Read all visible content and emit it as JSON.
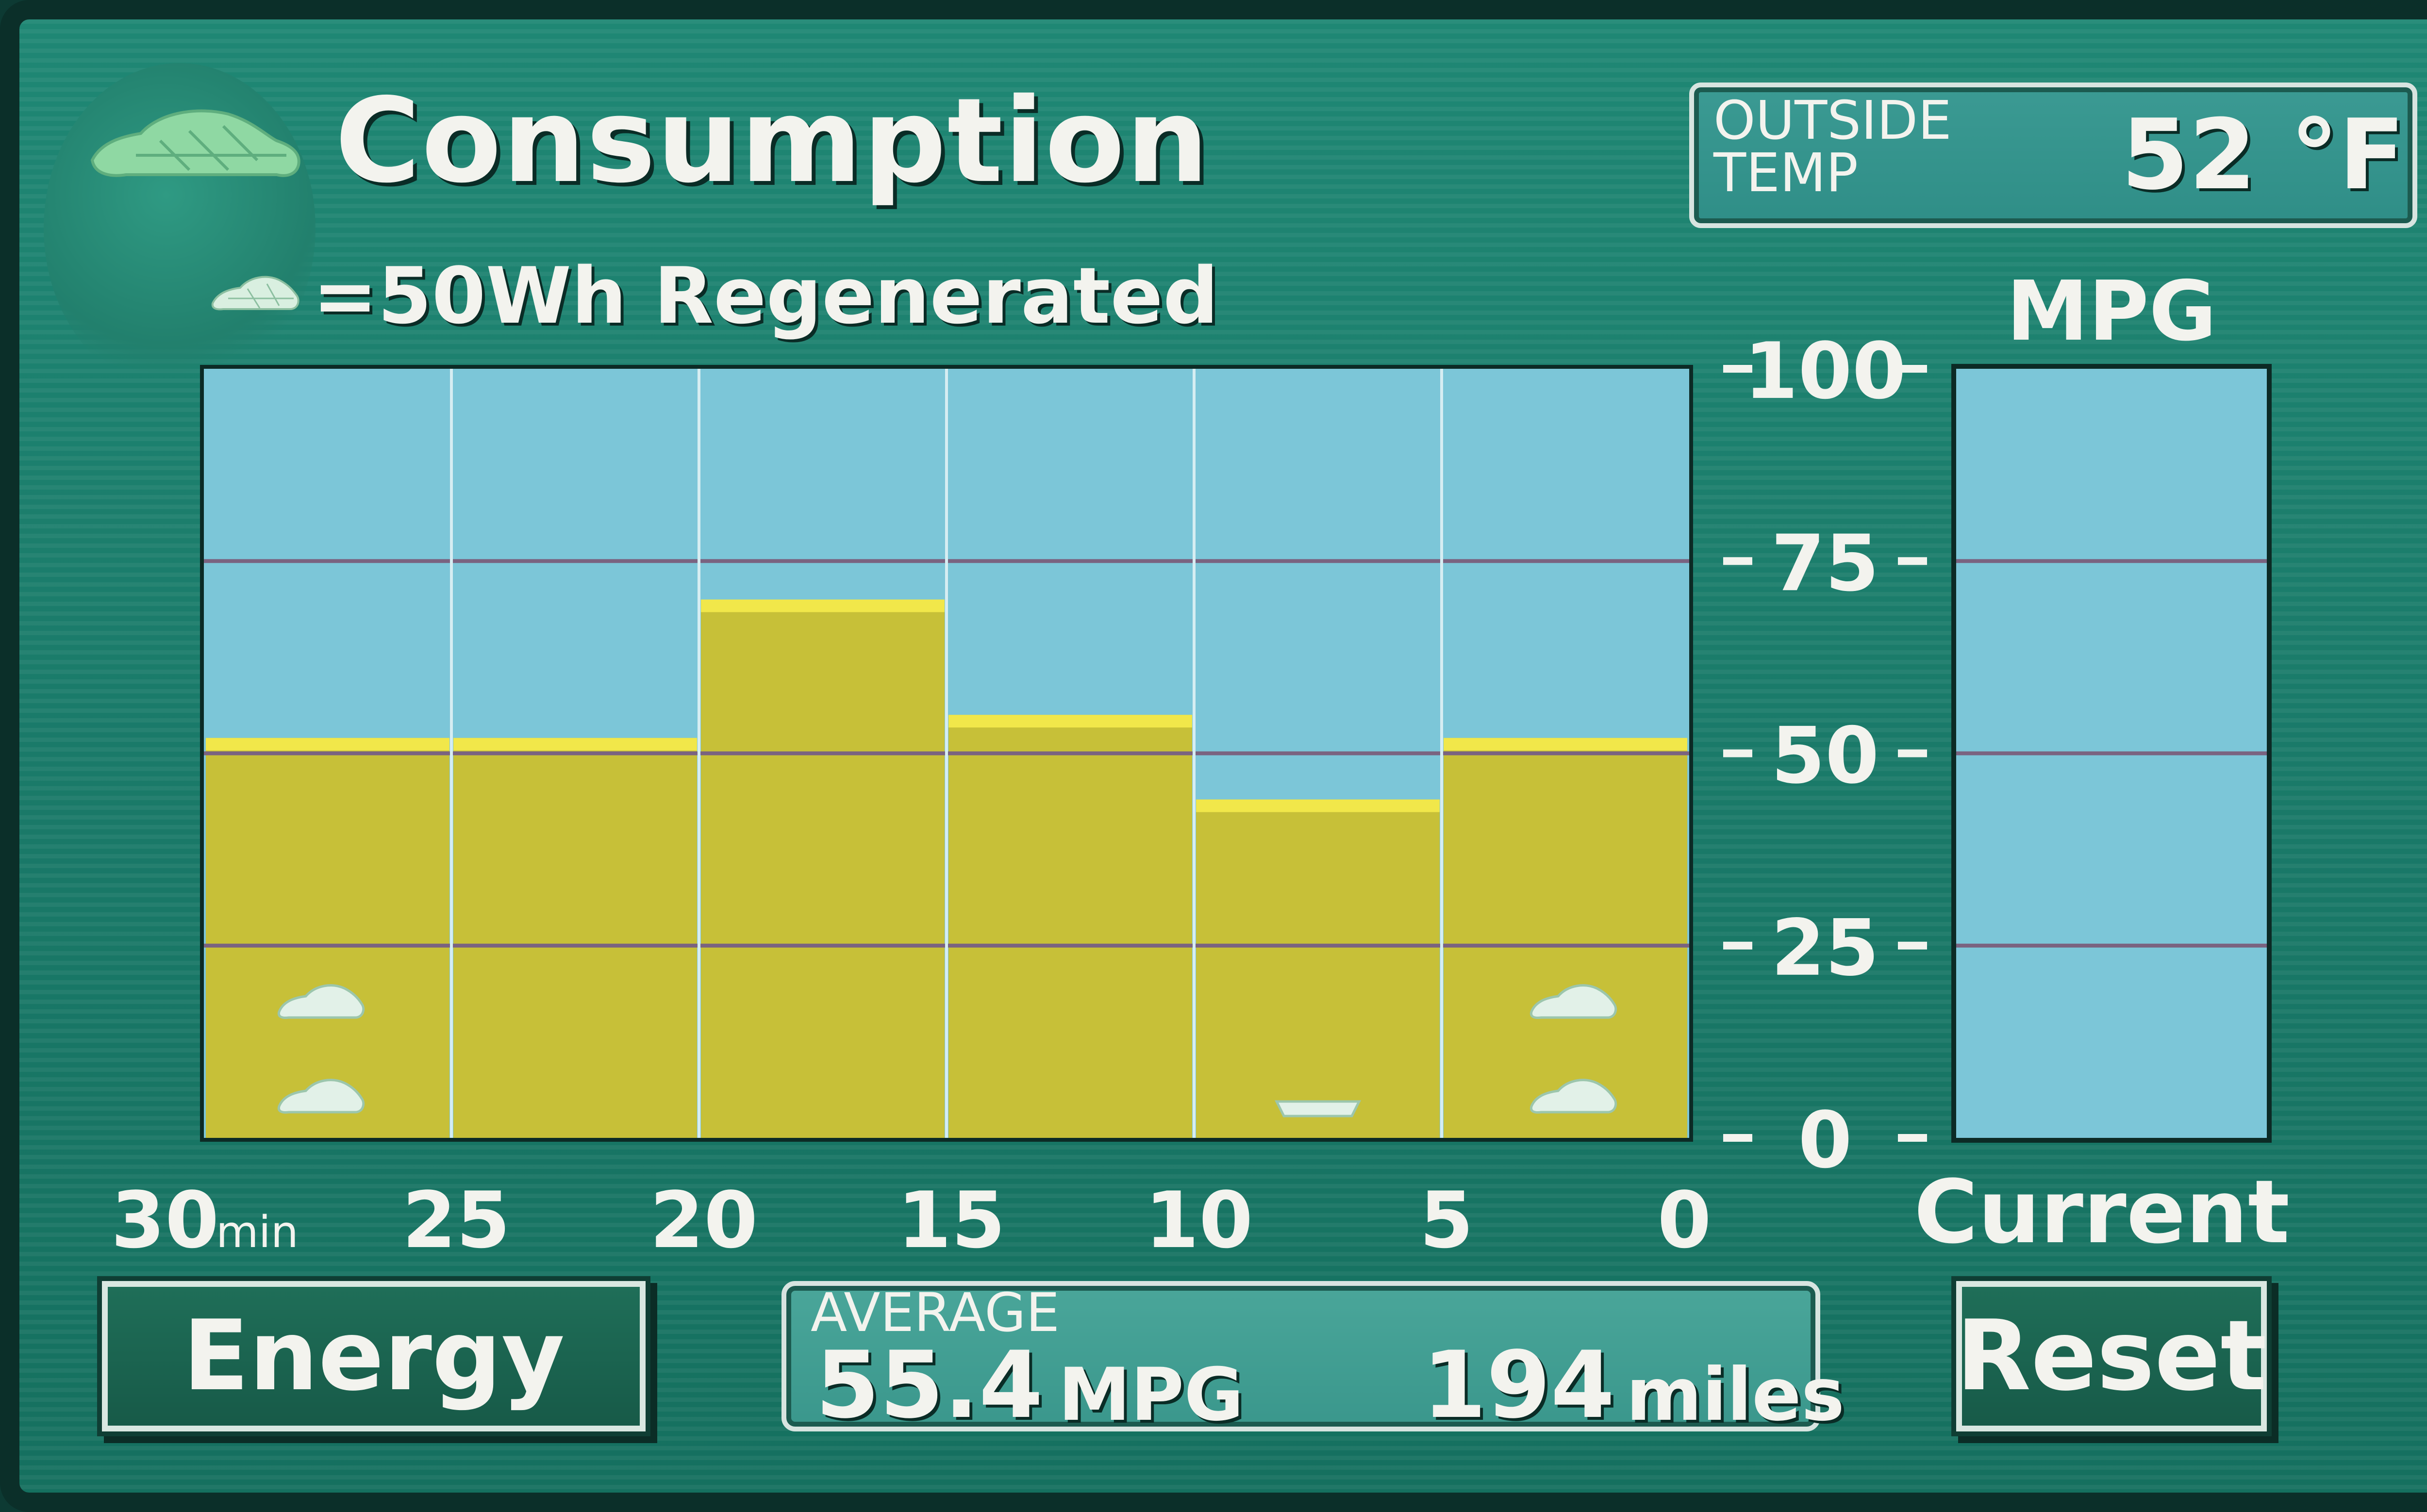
{
  "screen": {
    "title": "Consumption",
    "legend": {
      "text": "=50Wh Regenerated",
      "icon": "car-icon"
    },
    "outside_temp": {
      "label": "OUTSIDE\nTEMP",
      "value": "52 °F"
    },
    "current_label": "Current"
  },
  "chart_data": {
    "type": "bar",
    "title": "Consumption",
    "ylabel": "MPG",
    "xlabel": "",
    "x_ticks": [
      "30min",
      "25",
      "20",
      "15",
      "10",
      "5",
      "0"
    ],
    "y_ticks": [
      "100",
      "75",
      "50",
      "25",
      "0"
    ],
    "ylim": [
      0,
      100
    ],
    "grid": true,
    "categories": [
      "30-25",
      "25-20",
      "20-15",
      "15-10",
      "10-5",
      "5-0"
    ],
    "values": [
      52,
      52,
      70,
      55,
      44,
      52
    ],
    "regenerated_icons": [
      2,
      0,
      0,
      0,
      0,
      2
    ],
    "current_mpg": 0,
    "colors": {
      "bar": "#c7c038",
      "bar_top": "#f1e74a",
      "plot_bg": "#7cc6d8",
      "grid": "#7a6380"
    }
  },
  "buttons": {
    "energy_label": "Energy",
    "reset_label": "Reset"
  },
  "average": {
    "label": "AVERAGE",
    "mpg_value": "55.4",
    "mpg_unit": "MPG",
    "distance_value": "194",
    "distance_unit": "miles"
  }
}
